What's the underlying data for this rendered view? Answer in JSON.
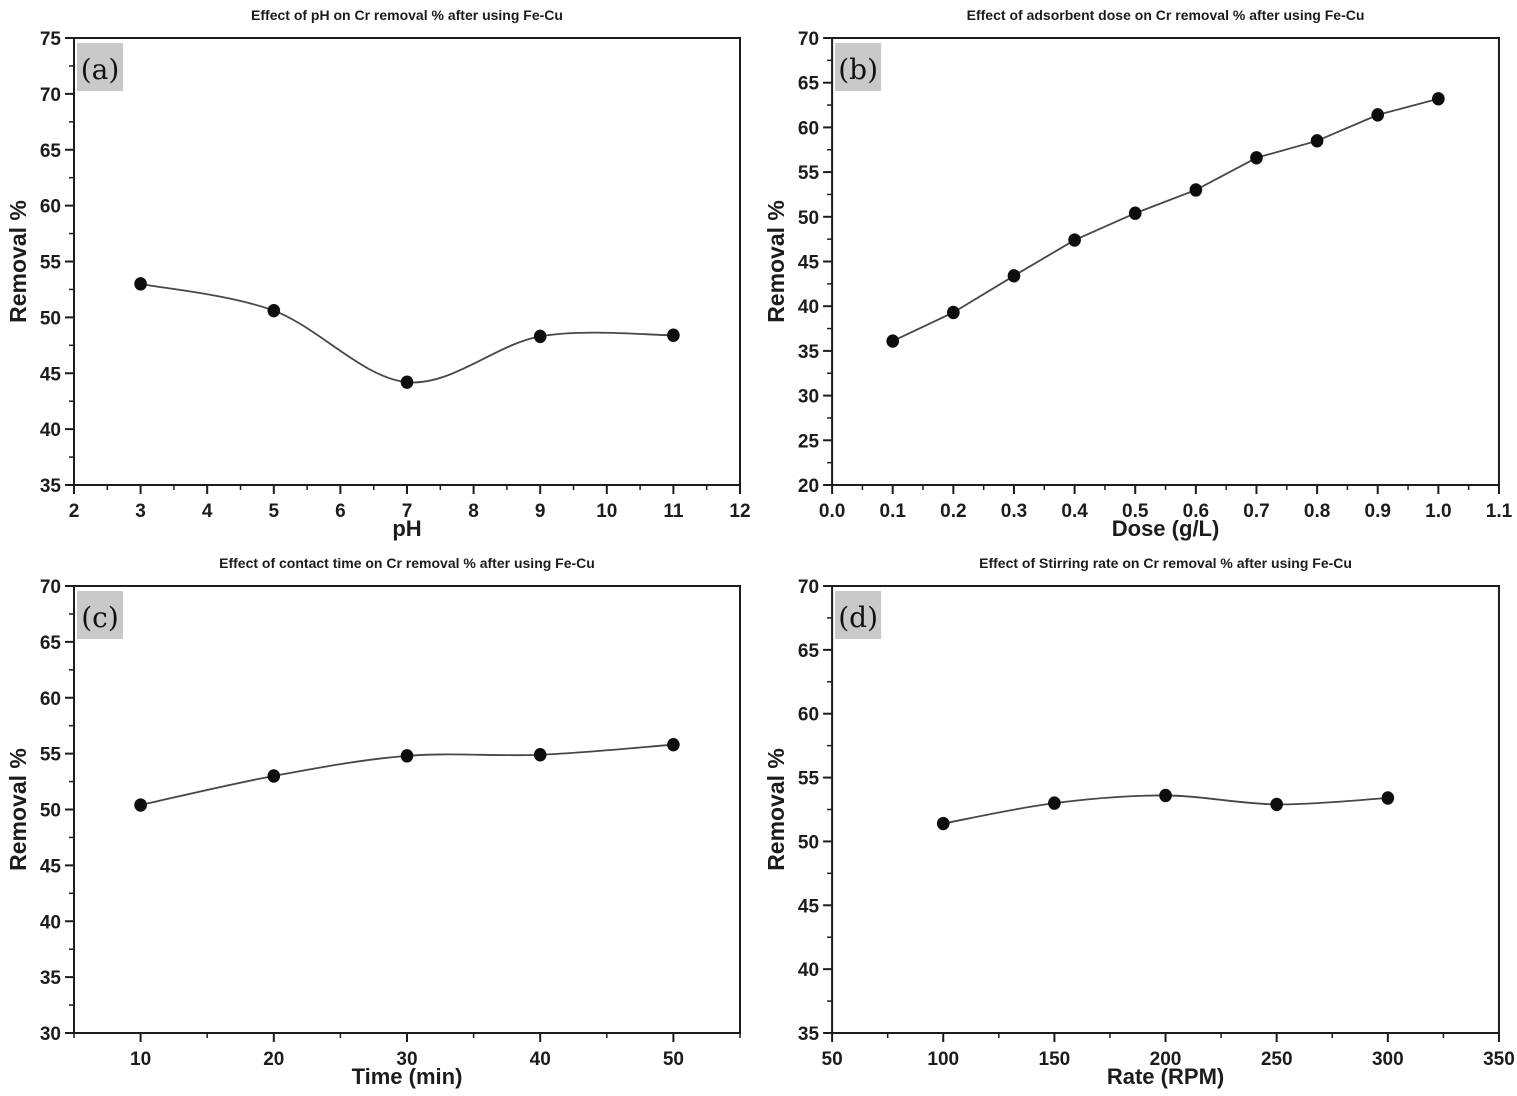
{
  "figure": {
    "background": "#ffffff",
    "text_color": "#1c1c1c",
    "axis_color": "#1c1c1c",
    "line_color": "#474747",
    "marker_color": "#0d0d0d",
    "panel_label_bg": "#c9c9c9"
  },
  "chart_data": [
    {
      "id": "a",
      "panel_label": "(a)",
      "type": "line",
      "title": "Effect of pH on Cr removal % after using Fe-Cu",
      "xlabel": "pH",
      "ylabel": "Removal %",
      "xlim": [
        2,
        12
      ],
      "ylim": [
        35,
        75
      ],
      "xticks": [
        2,
        3,
        4,
        5,
        6,
        7,
        8,
        9,
        10,
        11,
        12
      ],
      "xtick_labels": [
        "2",
        "3",
        "4",
        "5",
        "6",
        "7",
        "8",
        "9",
        "10",
        "11",
        "12"
      ],
      "yticks": [
        35,
        40,
        45,
        50,
        55,
        60,
        65,
        70,
        75
      ],
      "x_minor_step": 0.5,
      "y_minor_step": 2.5,
      "grid": false,
      "legend": false,
      "smooth": true,
      "series": [
        {
          "name": "Cr removal %",
          "x": [
            3,
            5,
            7,
            9,
            11
          ],
          "y": [
            53.0,
            50.6,
            44.2,
            48.3,
            48.4
          ]
        }
      ]
    },
    {
      "id": "b",
      "panel_label": "(b)",
      "type": "line",
      "title": "Effect of adsorbent dose on Cr removal % after using Fe-Cu",
      "xlabel": "Dose (g/L)",
      "ylabel": "Removal %",
      "xlim": [
        0.0,
        1.1
      ],
      "ylim": [
        20,
        70
      ],
      "xticks": [
        0.0,
        0.1,
        0.2,
        0.3,
        0.4,
        0.5,
        0.6,
        0.7,
        0.8,
        0.9,
        1.0,
        1.1
      ],
      "xtick_labels": [
        "0.0",
        "0.1",
        "0.2",
        "0.3",
        "0.4",
        "0.5",
        "0.6",
        "0.7",
        "0.8",
        "0.9",
        "1.0",
        "1.1"
      ],
      "yticks": [
        20,
        25,
        30,
        35,
        40,
        45,
        50,
        55,
        60,
        65,
        70
      ],
      "x_minor_step": 0.05,
      "y_minor_step": 2.5,
      "grid": false,
      "legend": false,
      "smooth": false,
      "series": [
        {
          "name": "Cr removal %",
          "x": [
            0.1,
            0.2,
            0.3,
            0.4,
            0.5,
            0.6,
            0.7,
            0.8,
            0.9,
            1.0
          ],
          "y": [
            36.1,
            39.3,
            43.4,
            47.4,
            50.4,
            53.0,
            56.6,
            58.5,
            61.4,
            63.2
          ]
        }
      ]
    },
    {
      "id": "c",
      "panel_label": "(c)",
      "type": "line",
      "title": "Effect of contact time on Cr removal % after using Fe-Cu",
      "xlabel": "Time (min)",
      "ylabel": "Removal %",
      "xlim": [
        5,
        55
      ],
      "ylim": [
        30,
        70
      ],
      "xticks": [
        10,
        20,
        30,
        40,
        50
      ],
      "xtick_labels": [
        "10",
        "20",
        "30",
        "40",
        "50"
      ],
      "yticks": [
        30,
        35,
        40,
        45,
        50,
        55,
        60,
        65,
        70
      ],
      "x_minor_step": 5,
      "y_minor_step": 2.5,
      "grid": false,
      "legend": false,
      "smooth": true,
      "series": [
        {
          "name": "Cr removal %",
          "x": [
            10,
            20,
            30,
            40,
            50
          ],
          "y": [
            50.4,
            53.0,
            54.8,
            54.9,
            55.8
          ]
        }
      ]
    },
    {
      "id": "d",
      "panel_label": "(d)",
      "type": "line",
      "title": "Effect of Stirring rate on Cr removal % after using Fe-Cu",
      "xlabel": "Rate (RPM)",
      "ylabel": "Removal %",
      "xlim": [
        50,
        350
      ],
      "ylim": [
        35,
        70
      ],
      "xticks": [
        50,
        100,
        150,
        200,
        250,
        300,
        350
      ],
      "xtick_labels": [
        "50",
        "100",
        "150",
        "200",
        "250",
        "300",
        "350"
      ],
      "yticks": [
        35,
        40,
        45,
        50,
        55,
        60,
        65,
        70
      ],
      "x_minor_step": 25,
      "y_minor_step": 2.5,
      "grid": false,
      "legend": false,
      "smooth": true,
      "series": [
        {
          "name": "Cr removal %",
          "x": [
            100,
            150,
            200,
            250,
            300
          ],
          "y": [
            51.4,
            53.0,
            53.6,
            52.9,
            53.4
          ]
        }
      ]
    }
  ]
}
